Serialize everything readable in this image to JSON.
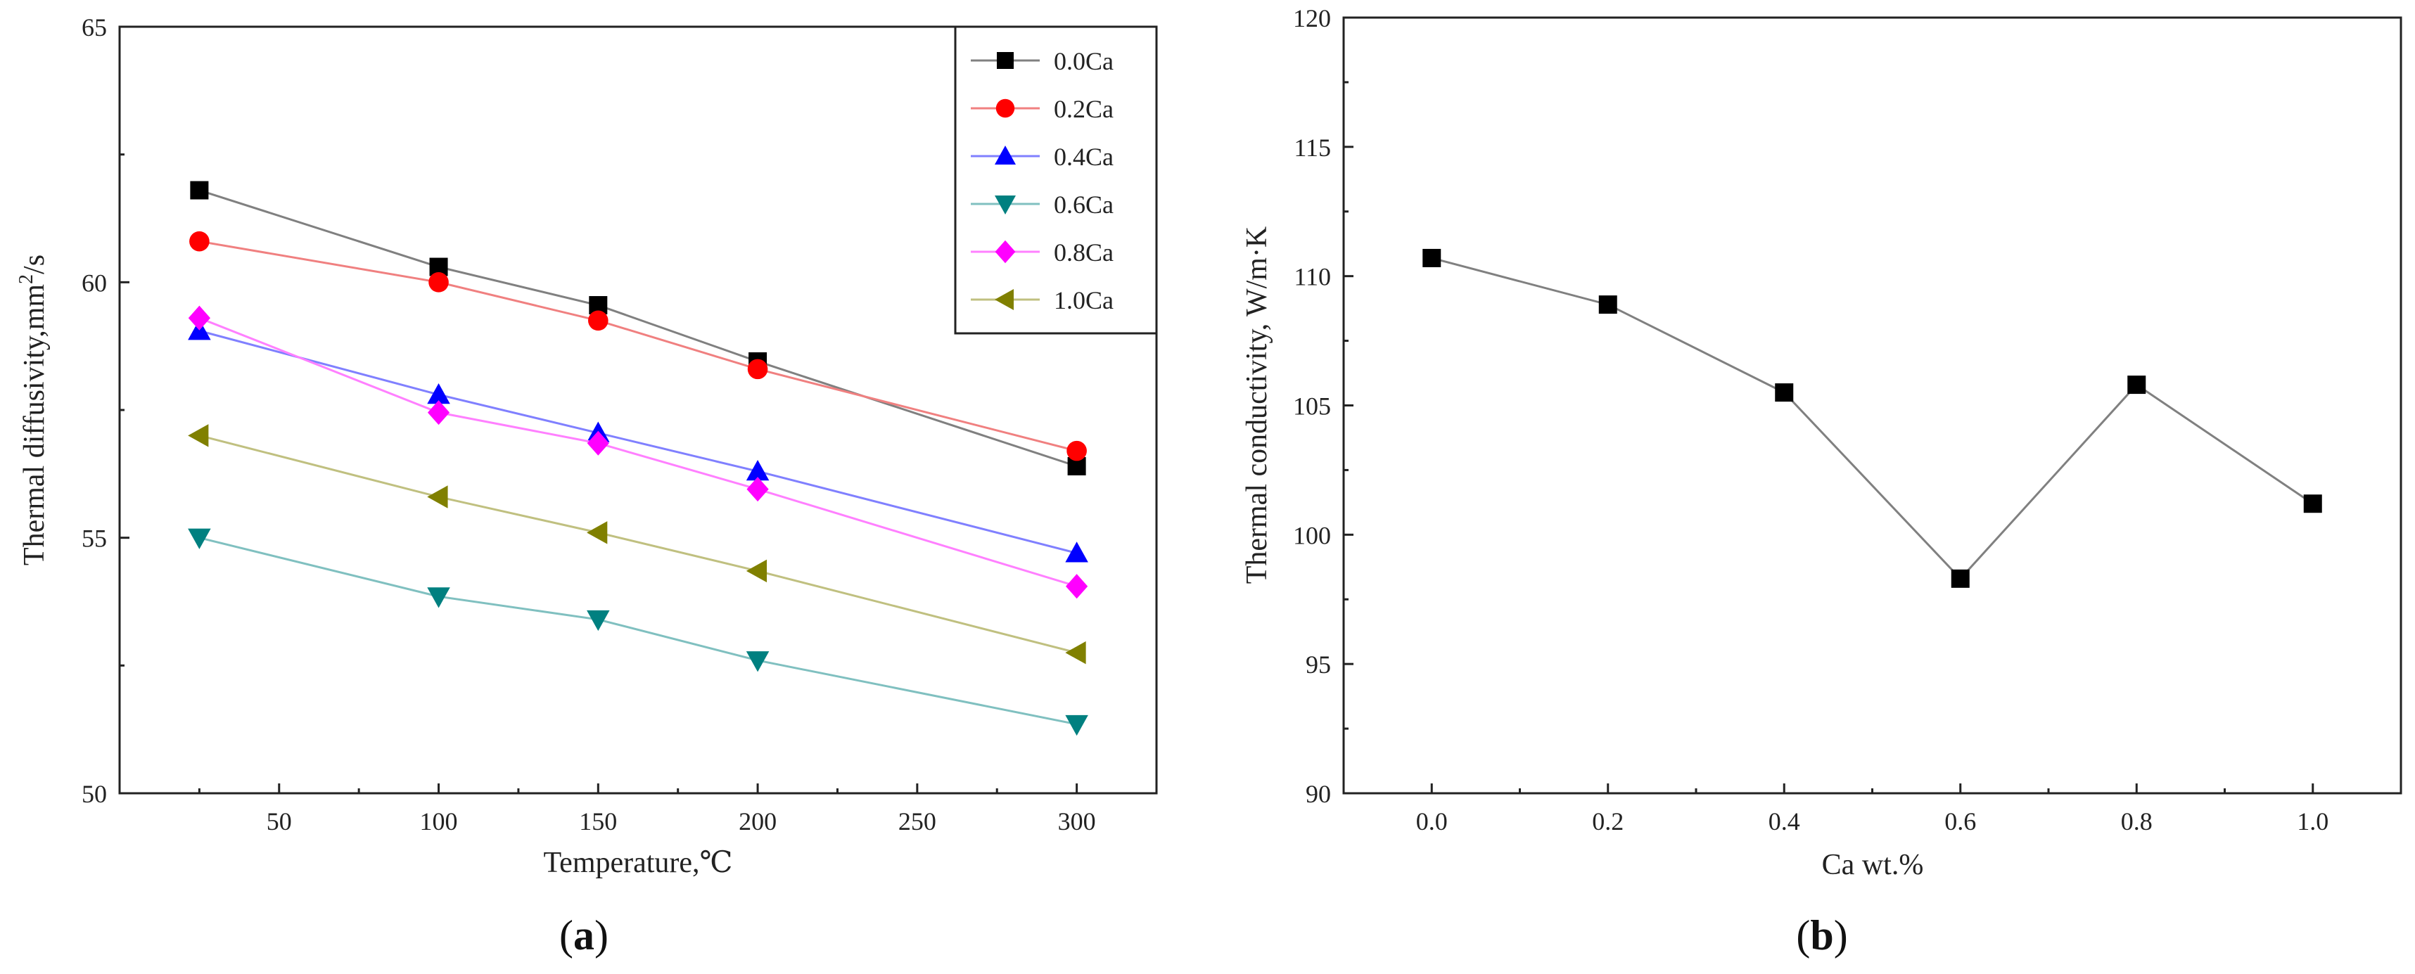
{
  "chart_data": [
    {
      "type": "line",
      "panel_label": "(a)",
      "panel_letter": "a",
      "xlabel": "Temperature,℃",
      "ylabel": "Thermal diffusivity,mm²/s",
      "ylabel_prefix": "Thermal diffusivity,mm",
      "ylabel_sup": "2",
      "ylabel_suffix": "/s",
      "xlim": [
        0,
        325
      ],
      "ylim": [
        50,
        65
      ],
      "xticks": [
        50,
        100,
        150,
        200,
        250,
        300
      ],
      "yticks": [
        50,
        55,
        60,
        65
      ],
      "legend_position": "top-right",
      "x": [
        25,
        100,
        150,
        200,
        300
      ],
      "series": [
        {
          "name": "0.0Ca",
          "marker": "square",
          "color": "#000000",
          "line_color": "#808080",
          "values": [
            61.8,
            60.3,
            59.55,
            58.45,
            56.4
          ]
        },
        {
          "name": "0.2Ca",
          "marker": "circle",
          "color": "#ff0000",
          "line_color": "#f08080",
          "values": [
            60.8,
            60.0,
            59.25,
            58.3,
            56.7
          ]
        },
        {
          "name": "0.4Ca",
          "marker": "triangle-up",
          "color": "#0000ff",
          "line_color": "#8080ff",
          "values": [
            59.05,
            57.8,
            57.05,
            56.3,
            54.7
          ]
        },
        {
          "name": "0.6Ca",
          "marker": "triangle-down",
          "color": "#008080",
          "line_color": "#80c0c0",
          "values": [
            55.0,
            53.85,
            53.4,
            52.6,
            51.35
          ]
        },
        {
          "name": "0.8Ca",
          "marker": "diamond",
          "color": "#ff00ff",
          "line_color": "#ff80ff",
          "values": [
            59.3,
            57.45,
            56.85,
            55.95,
            54.05
          ]
        },
        {
          "name": "1.0Ca",
          "marker": "triangle-left",
          "color": "#808000",
          "line_color": "#c0c080",
          "values": [
            57.0,
            55.8,
            55.1,
            54.35,
            52.75
          ]
        }
      ]
    },
    {
      "type": "line",
      "panel_label": "(b)",
      "panel_letter": "b",
      "xlabel": "Ca wt.%",
      "ylabel": "Thermal conductivity, W/m·K",
      "xlim": [
        -0.1,
        1.1
      ],
      "ylim": [
        90,
        120
      ],
      "xticks": [
        "0.0",
        "0.2",
        "0.4",
        "0.6",
        "0.8",
        "1.0"
      ],
      "yticks": [
        90,
        95,
        100,
        105,
        110,
        115,
        120
      ],
      "x": [
        0.0,
        0.2,
        0.4,
        0.6,
        0.8,
        1.0
      ],
      "series": [
        {
          "name": "Thermal conductivity",
          "marker": "square",
          "color": "#000000",
          "line_color": "#808080",
          "values": [
            110.7,
            108.9,
            105.5,
            98.3,
            105.8,
            101.2
          ]
        }
      ]
    }
  ]
}
